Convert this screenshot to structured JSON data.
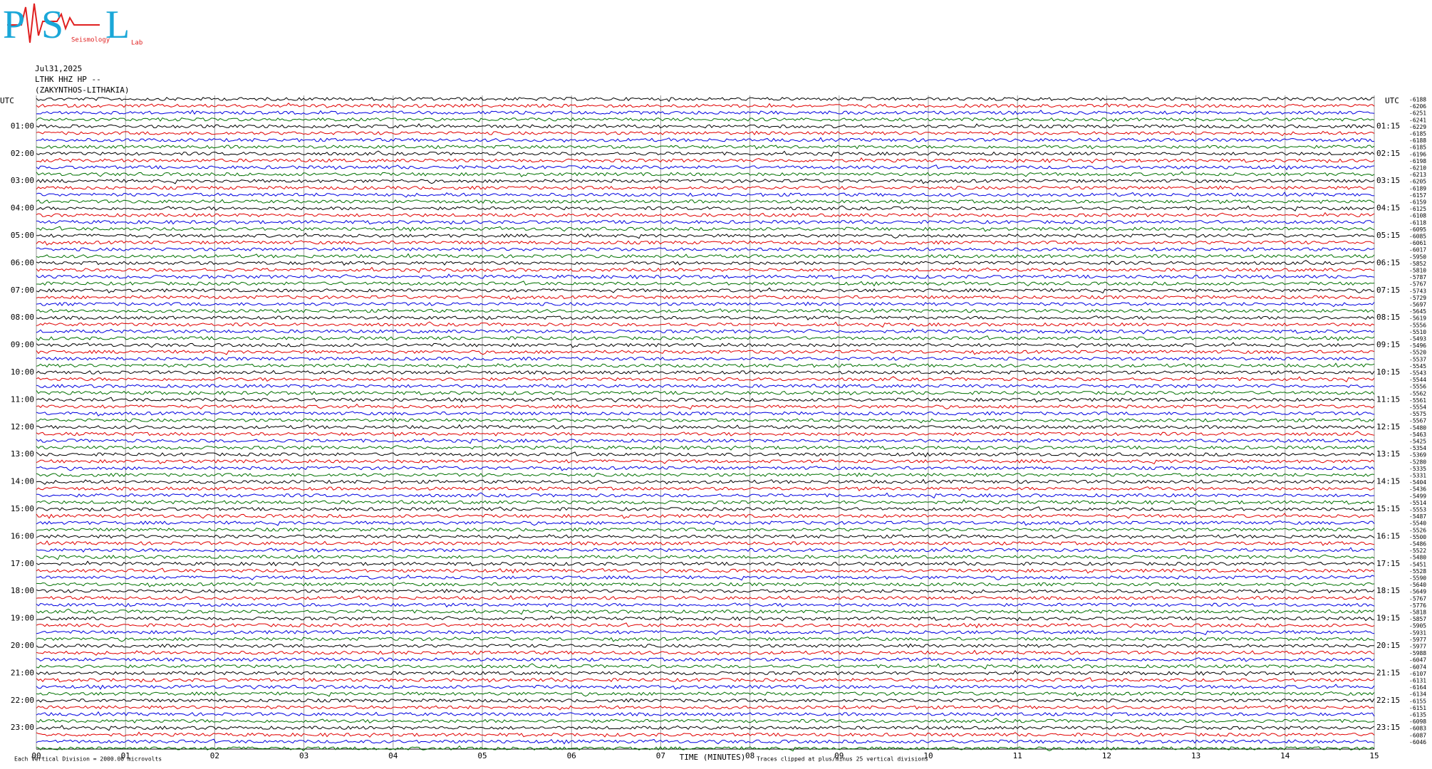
{
  "logo": {
    "letters": [
      "P",
      "S",
      "L"
    ],
    "words": [
      "Seismology",
      "Lab"
    ]
  },
  "chart_data": {
    "type": "helicorder",
    "date": "Jul31,2025",
    "station": "LTHK HHZ HP --",
    "location": "(ZAKYNTHOS-LITHAKIA)",
    "left_header": "UTC",
    "right_header": "UTC",
    "left_labels": [
      "01:00",
      "02:00",
      "03:00",
      "04:00",
      "05:00",
      "06:00",
      "07:00",
      "08:00",
      "09:00",
      "10:00",
      "11:00",
      "12:00",
      "13:00",
      "14:00",
      "15:00",
      "16:00",
      "17:00",
      "18:00",
      "19:00",
      "20:00",
      "21:00",
      "22:00",
      "23:00"
    ],
    "right_labels": [
      "01:15",
      "02:15",
      "03:15",
      "04:15",
      "05:15",
      "06:15",
      "07:15",
      "08:15",
      "09:15",
      "10:15",
      "11:15",
      "12:15",
      "13:15",
      "14:15",
      "15:15",
      "16:15",
      "17:15",
      "18:15",
      "19:15",
      "20:15",
      "21:15",
      "22:15",
      "23:15"
    ],
    "trace_offsets": [
      -6188,
      -6206,
      -6251,
      -6241,
      -6229,
      -6185,
      -6188,
      -6185,
      -6196,
      -6198,
      -6210,
      -6213,
      -6205,
      -6189,
      -6157,
      -6159,
      -6125,
      -6108,
      -6118,
      -6095,
      -6085,
      -6061,
      -6017,
      -5950,
      -5852,
      -5810,
      -5787,
      -5767,
      -5743,
      -5729,
      -5697,
      -5645,
      -5619,
      -5556,
      -5510,
      -5493,
      -5496,
      -5520,
      -5537,
      -5545,
      -5543,
      -5544,
      -5556,
      -5562,
      -5561,
      -5554,
      -5575,
      -5567,
      -5480,
      -5463,
      -5425,
      -5354,
      -5369,
      -5280,
      -5335,
      -5331,
      -5404,
      -5436,
      -5499,
      -5514,
      -5553,
      -5487,
      -5540,
      -5526,
      -5500,
      -5486,
      -5522,
      -5480,
      -5451,
      -5528,
      -5590,
      -5640,
      -5649,
      -5767,
      -5776,
      -5818,
      -5857,
      -5905,
      -5931,
      -5977,
      -5977,
      -5988,
      -6047,
      -6074,
      -6107,
      -6131,
      -6164,
      -6134,
      -6155,
      -6151,
      -6135,
      -6098,
      -6083,
      -6087,
      -6046
    ],
    "trace_colors": [
      "#000000",
      "#e00000",
      "#0000e0",
      "#007000"
    ],
    "xlim": [
      0,
      15
    ],
    "xticks": [
      {
        "value": 0,
        "label": "00"
      },
      {
        "value": 1,
        "label": "01"
      },
      {
        "value": 2,
        "label": "02"
      },
      {
        "value": 3,
        "label": "03"
      },
      {
        "value": 4,
        "label": "04"
      },
      {
        "value": 5,
        "label": "05"
      },
      {
        "value": 6,
        "label": "06"
      },
      {
        "value": 7,
        "label": "07"
      },
      {
        "value": 8,
        "label": "08"
      },
      {
        "value": 9,
        "label": "09"
      },
      {
        "value": 10,
        "label": "10"
      },
      {
        "value": 11,
        "label": "11"
      },
      {
        "value": 12,
        "label": "12"
      },
      {
        "value": 13,
        "label": "13"
      },
      {
        "value": 14,
        "label": "14"
      },
      {
        "value": 15,
        "label": "15"
      }
    ],
    "xlabel": "TIME (MINUTES)",
    "scale_note": "Each Vertical Division = 2000.00 microvolts",
    "clip_note": "Traces clipped at plus/minus 25 vertical divisions",
    "grid": true
  }
}
